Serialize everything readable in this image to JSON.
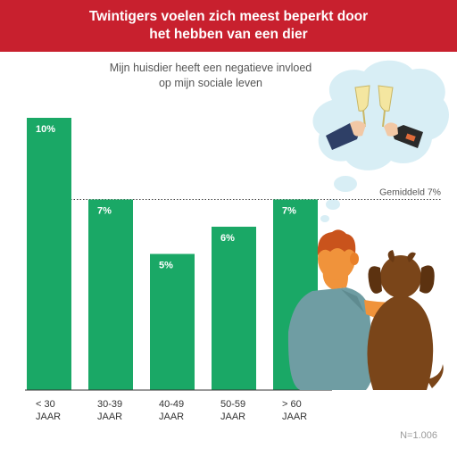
{
  "header": {
    "title_line1": "Twintigers voelen zich meest beperkt door",
    "title_line2": "het hebben van een dier"
  },
  "chart_subtitle": {
    "line1": "Mijn huisdier heeft een negatieve invloed",
    "line2": "op mijn sociale leven"
  },
  "chart_data": {
    "type": "bar",
    "title": "Mijn huisdier heeft een negatieve invloed op mijn sociale leven",
    "categories": [
      [
        "< 30",
        "JAAR"
      ],
      [
        "30-39",
        "JAAR"
      ],
      [
        "40-49",
        "JAAR"
      ],
      [
        "50-59",
        "JAAR"
      ],
      [
        "> 60",
        "JAAR"
      ]
    ],
    "values": [
      10,
      7,
      5,
      6,
      7
    ],
    "value_labels": [
      "10%",
      "7%",
      "5%",
      "6%",
      "7%"
    ],
    "ylim": [
      0,
      10
    ],
    "average": {
      "value": 7,
      "label": "Gemiddeld 7%"
    },
    "bar_color": "#1aa866",
    "grid": false
  },
  "footer": {
    "sample_size": "N=1.006"
  },
  "colors": {
    "banner": "#c8202e",
    "bar": "#1aa866",
    "thought_bubble": "#d8eef5",
    "dog": "#7a4519",
    "shirt": "#6f9da3",
    "hair": "#c9531c"
  },
  "illustration": {
    "icons": [
      "thought-bubble-icon",
      "champagne-toast-icon",
      "person-from-behind-icon",
      "dog-from-behind-icon"
    ]
  }
}
